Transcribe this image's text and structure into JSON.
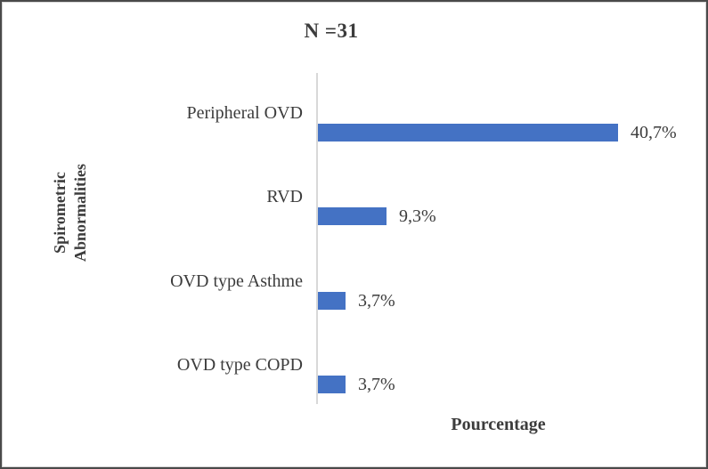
{
  "chart_data": {
    "type": "bar",
    "orientation": "horizontal",
    "title": "N =31",
    "sample_size": 31,
    "xlabel": "Pourcentage",
    "ylabel": "Spirometric Abnormalities",
    "ylabel_lines": [
      "Spirometric",
      "Abnormalities"
    ],
    "categories": [
      "Peripheral OVD",
      "RVD",
      "OVD type Asthme",
      "OVD type COPD"
    ],
    "values": [
      40.7,
      9.3,
      3.7,
      3.7
    ],
    "value_labels": [
      "40,7%",
      "9,3%",
      "3,7%",
      "3,7%"
    ],
    "xlim": [
      0,
      45
    ],
    "grid": false,
    "legend": false,
    "bar_color": "#4472C4",
    "axis_line_color": "#D8D8D8",
    "text_color": "#3C3C3C",
    "border_color": "#4A4A4A"
  }
}
